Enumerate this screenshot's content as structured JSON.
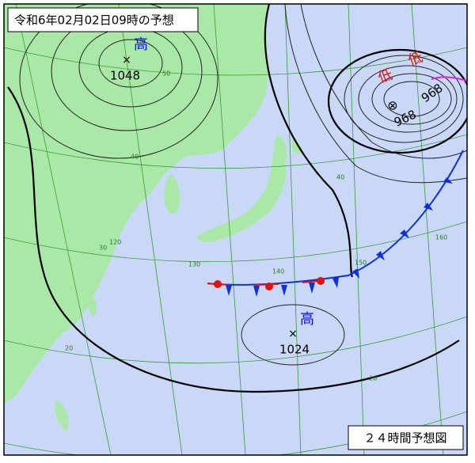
{
  "header": {
    "title": "令和6年02月02日09時の予想"
  },
  "footer": {
    "label": "２４時間予想図"
  },
  "systems": [
    {
      "kind": "高",
      "pressure": "1048"
    },
    {
      "kind": "低",
      "pressure": "968"
    },
    {
      "kind": "低",
      "pressure": "968"
    },
    {
      "kind": "高",
      "pressure": "1024"
    }
  ],
  "grid_labels": [
    "50",
    "40",
    "40",
    "30",
    "20",
    "20",
    "120",
    "130",
    "140",
    "150",
    "160"
  ]
}
